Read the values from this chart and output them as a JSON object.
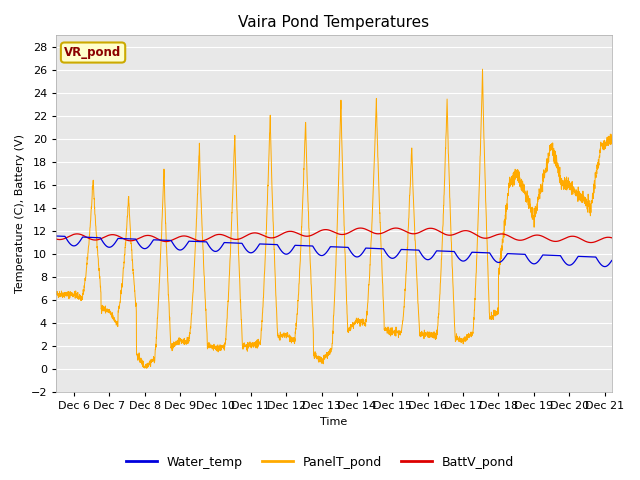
{
  "title": "Vaira Pond Temperatures",
  "ylabel": "Temperature (C), Battery (V)",
  "xlabel": "Time",
  "xlim_days": [
    5.5,
    21.2
  ],
  "ylim": [
    -2,
    29
  ],
  "yticks": [
    -2,
    0,
    2,
    4,
    6,
    8,
    10,
    12,
    14,
    16,
    18,
    20,
    22,
    24,
    26,
    28
  ],
  "xtick_labels": [
    "Dec 6",
    "Dec 7",
    "Dec 8",
    "Dec 9",
    "Dec 10",
    "Dec 11",
    "Dec 12",
    "Dec 13",
    "Dec 14",
    "Dec 15",
    "Dec 16",
    "Dec 17",
    "Dec 18",
    "Dec 19",
    "Dec 20",
    "Dec 21"
  ],
  "xtick_positions": [
    6,
    7,
    8,
    9,
    10,
    11,
    12,
    13,
    14,
    15,
    16,
    17,
    18,
    19,
    20,
    21
  ],
  "fig_bg_color": "#ffffff",
  "plot_bg_color": "#e8e8e8",
  "grid_color": "#ffffff",
  "water_color": "#0000dd",
  "panel_color": "#ffaa00",
  "batt_color": "#dd0000",
  "legend_label_water": "Water_temp",
  "legend_label_panel": "PanelT_pond",
  "legend_label_batt": "BattV_pond",
  "site_label": "VR_pond",
  "title_fontsize": 11,
  "axis_fontsize": 8,
  "legend_fontsize": 9
}
